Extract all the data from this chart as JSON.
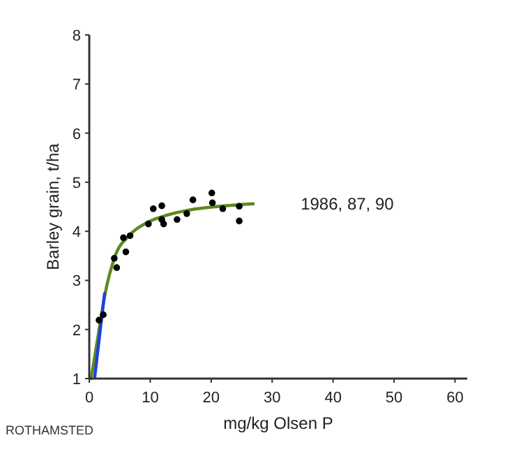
{
  "chart_data": {
    "type": "scatter",
    "xlabel": "mg/kg Olsen P",
    "ylabel": "Barley grain, t/ha",
    "xlim": [
      0,
      62
    ],
    "ylim": [
      1,
      8
    ],
    "xticks": [
      0,
      10,
      20,
      30,
      40,
      50,
      60
    ],
    "yticks": [
      1,
      2,
      3,
      4,
      5,
      6,
      7,
      8
    ],
    "grid": false,
    "annotations": [
      "1986, 87, 90",
      "ROTHAMSTED"
    ],
    "series": [
      {
        "color": "#000000",
        "marker": "circle",
        "x": [
          1.6,
          2.3,
          4.1,
          4.5,
          5.6,
          6.0,
          6.7,
          9.7,
          10.5,
          11.9,
          11.9,
          12.2,
          14.4,
          16.0,
          17.0,
          20.1,
          20.2,
          21.9,
          24.6,
          24.6
        ],
        "values": [
          2.19,
          2.3,
          3.45,
          3.26,
          3.87,
          3.58,
          3.91,
          4.15,
          4.46,
          4.52,
          4.24,
          4.15,
          4.24,
          4.36,
          4.64,
          4.78,
          4.58,
          4.46,
          4.51,
          4.21
        ]
      },
      {
        "type": "line",
        "color": "#5a8a1e",
        "marker": "none",
        "line_style": "solid",
        "x": [
          0.3,
          1.5,
          2.7,
          4.2,
          6.6,
          9.7,
          12.8,
          16.7,
          20.6,
          26.9
        ],
        "values": [
          1,
          1.91,
          2.79,
          3.48,
          3.92,
          4.19,
          4.33,
          4.44,
          4.5,
          4.56
        ]
      },
      {
        "type": "line",
        "color": "#1f3fe0",
        "marker": "none",
        "line_style": "solid",
        "x": [
          0.9,
          2.5
        ],
        "values": [
          1.03,
          2.73
        ]
      }
    ]
  }
}
